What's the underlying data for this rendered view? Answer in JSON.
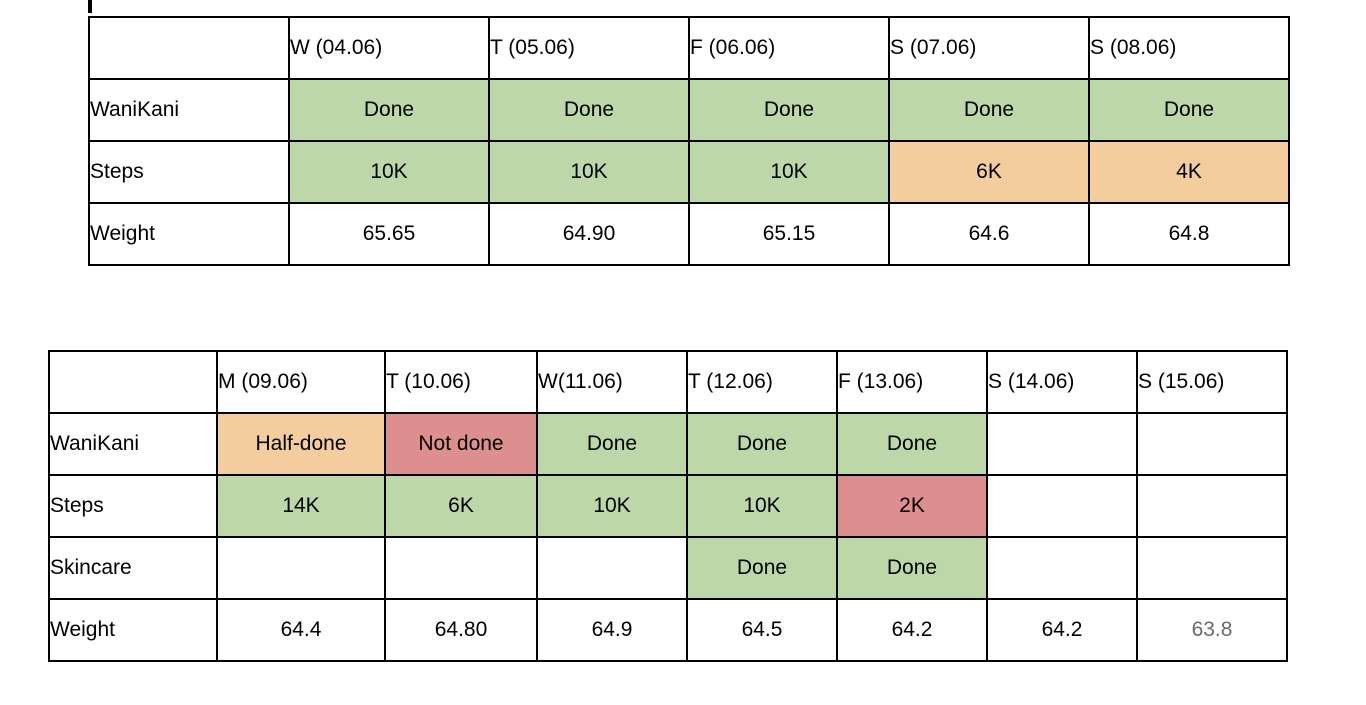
{
  "page": {
    "background": "#ffffff"
  },
  "colors": {
    "green": "#bed7a8",
    "orange": "#f4cd9e",
    "red": "#dd8e8e",
    "text": "#000000",
    "muted_text": "#6b6b6b",
    "border": "#000000"
  },
  "tables": [
    {
      "id": "week1",
      "columns": [
        "",
        "W (04.06)",
        "T (05.06)",
        "F (06.06)",
        "S (07.06)",
        "S (08.06)"
      ],
      "rows": [
        {
          "label": "WaniKani",
          "cells": [
            {
              "text": "Done",
              "status": "green"
            },
            {
              "text": "Done",
              "status": "green"
            },
            {
              "text": "Done",
              "status": "green"
            },
            {
              "text": "Done",
              "status": "green"
            },
            {
              "text": "Done",
              "status": "green"
            }
          ]
        },
        {
          "label": "Steps",
          "cells": [
            {
              "text": "10K",
              "status": "green"
            },
            {
              "text": "10K",
              "status": "green"
            },
            {
              "text": "10K",
              "status": "green"
            },
            {
              "text": "6K",
              "status": "orange"
            },
            {
              "text": "4K",
              "status": "orange"
            }
          ]
        },
        {
          "label": "Weight",
          "cells": [
            {
              "text": "65.65"
            },
            {
              "text": "64.90"
            },
            {
              "text": "65.15"
            },
            {
              "text": "64.6"
            },
            {
              "text": "64.8"
            }
          ]
        }
      ]
    },
    {
      "id": "week2",
      "columns": [
        "",
        "M (09.06)",
        "T (10.06)",
        "W(11.06)",
        "T (12.06)",
        "F (13.06)",
        "S (14.06)",
        "S (15.06)"
      ],
      "rows": [
        {
          "label": "WaniKani",
          "cells": [
            {
              "text": "Half-done",
              "status": "orange"
            },
            {
              "text": "Not done",
              "status": "red"
            },
            {
              "text": "Done",
              "status": "green"
            },
            {
              "text": "Done",
              "status": "green"
            },
            {
              "text": "Done",
              "status": "green"
            },
            {
              "text": ""
            },
            {
              "text": ""
            }
          ]
        },
        {
          "label": "Steps",
          "cells": [
            {
              "text": "14K",
              "status": "green"
            },
            {
              "text": "6K",
              "status": "green"
            },
            {
              "text": "10K",
              "status": "green"
            },
            {
              "text": "10K",
              "status": "green"
            },
            {
              "text": "2K",
              "status": "red"
            },
            {
              "text": ""
            },
            {
              "text": ""
            }
          ]
        },
        {
          "label": "Skincare",
          "cells": [
            {
              "text": ""
            },
            {
              "text": ""
            },
            {
              "text": ""
            },
            {
              "text": "Done",
              "status": "green"
            },
            {
              "text": "Done",
              "status": "green"
            },
            {
              "text": ""
            },
            {
              "text": ""
            }
          ]
        },
        {
          "label": "Weight",
          "cells": [
            {
              "text": "64.4"
            },
            {
              "text": "64.80"
            },
            {
              "text": "64.9"
            },
            {
              "text": "64.5"
            },
            {
              "text": "64.2"
            },
            {
              "text": "64.2"
            },
            {
              "text": "63.8",
              "muted": true
            }
          ]
        }
      ]
    }
  ]
}
